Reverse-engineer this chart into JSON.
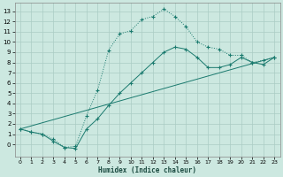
{
  "xlabel": "Humidex (Indice chaleur)",
  "bg_color": "#cce8e0",
  "grid_color": "#aaccC4",
  "line_color": "#1a7a6e",
  "xlim": [
    -0.5,
    23.5
  ],
  "ylim": [
    -1.2,
    13.8
  ],
  "xticks": [
    0,
    1,
    2,
    3,
    4,
    5,
    6,
    7,
    8,
    9,
    10,
    11,
    12,
    13,
    14,
    15,
    16,
    17,
    18,
    19,
    20,
    21,
    22,
    23
  ],
  "yticks": [
    0,
    1,
    2,
    3,
    4,
    5,
    6,
    7,
    8,
    9,
    10,
    11,
    12,
    13
  ],
  "curve1_x": [
    0,
    1,
    2,
    3,
    4,
    5,
    6,
    7,
    8,
    9,
    10,
    11,
    12,
    13,
    14,
    15,
    16,
    17,
    18,
    19,
    20,
    21,
    22,
    23
  ],
  "curve1_y": [
    1.5,
    1.2,
    1.0,
    0.5,
    -0.3,
    -0.2,
    2.8,
    5.3,
    9.2,
    10.8,
    11.1,
    12.2,
    12.5,
    13.2,
    12.5,
    11.5,
    10.0,
    9.5,
    9.3,
    8.7,
    8.7,
    8.0,
    8.2,
    8.5
  ],
  "curve2_x": [
    0,
    1,
    2,
    3,
    4,
    5,
    6,
    7,
    8,
    9,
    10,
    11,
    12,
    13,
    14,
    15,
    16,
    17,
    18,
    19,
    20,
    21,
    22,
    23
  ],
  "curve2_y": [
    1.5,
    1.2,
    1.0,
    0.3,
    -0.3,
    -0.4,
    1.5,
    2.5,
    3.8,
    5.0,
    6.0,
    7.0,
    8.0,
    9.0,
    9.5,
    9.3,
    8.5,
    7.5,
    7.5,
    7.8,
    8.5,
    8.0,
    7.8,
    8.5
  ],
  "curve3_x": [
    0,
    23
  ],
  "curve3_y": [
    1.5,
    8.5
  ]
}
